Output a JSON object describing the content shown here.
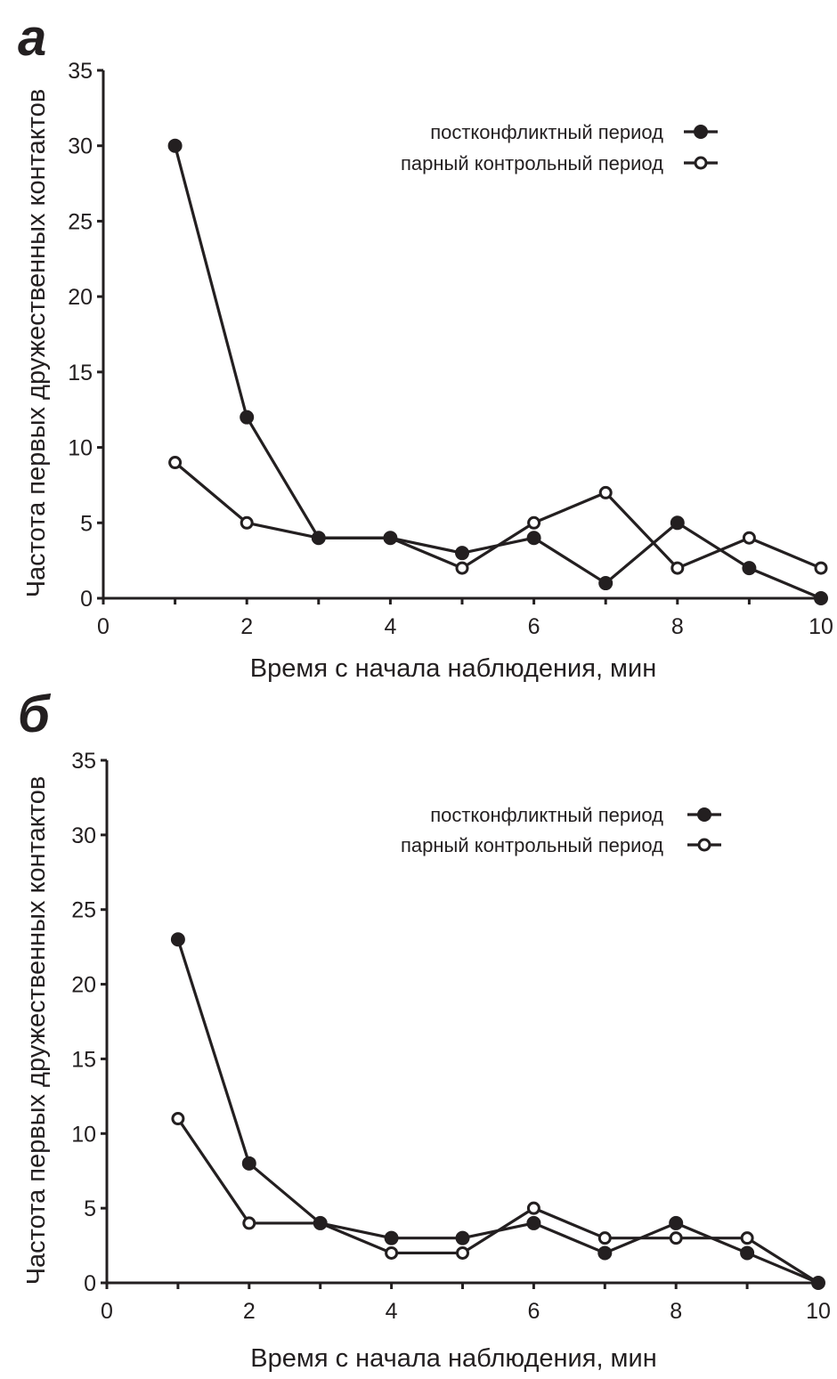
{
  "chart_data": [
    {
      "type": "line",
      "panel_label": "а",
      "xlabel": "Время с начала наблюдения, мин",
      "ylabel": "Частота первых дружественных контактов",
      "xlim": [
        0,
        10
      ],
      "ylim": [
        0,
        35
      ],
      "xticks": [
        "0",
        "2",
        "4",
        "6",
        "8",
        "10"
      ],
      "yticks": [
        "0",
        "5",
        "10",
        "15",
        "20",
        "25",
        "30",
        "35"
      ],
      "legend_position": "top-right",
      "x": [
        1,
        2,
        3,
        4,
        5,
        6,
        7,
        8,
        9,
        10
      ],
      "series": [
        {
          "name": "постконфликтный период",
          "marker": "filled",
          "values": [
            30,
            12,
            4,
            4,
            3,
            4,
            1,
            5,
            2,
            0
          ]
        },
        {
          "name": "парный контрольный период",
          "marker": "open",
          "values": [
            9,
            5,
            4,
            4,
            2,
            5,
            7,
            2,
            4,
            2
          ]
        }
      ]
    },
    {
      "type": "line",
      "panel_label": "б",
      "xlabel": "Время с начала наблюдения, мин",
      "ylabel": "Частота первых дружественных контактов",
      "xlim": [
        0,
        10
      ],
      "ylim": [
        0,
        35
      ],
      "xticks": [
        "0",
        "2",
        "4",
        "6",
        "8",
        "10"
      ],
      "yticks": [
        "0",
        "5",
        "10",
        "15",
        "20",
        "25",
        "30",
        "35"
      ],
      "legend_position": "top-right",
      "x": [
        1,
        2,
        3,
        4,
        5,
        6,
        7,
        8,
        9,
        10
      ],
      "series": [
        {
          "name": "постконфликтный период",
          "marker": "filled",
          "values": [
            23,
            8,
            4,
            3,
            3,
            4,
            2,
            4,
            2,
            0
          ]
        },
        {
          "name": "парный контрольный период",
          "marker": "open",
          "values": [
            11,
            4,
            4,
            2,
            2,
            5,
            3,
            3,
            3,
            0
          ]
        }
      ]
    }
  ]
}
